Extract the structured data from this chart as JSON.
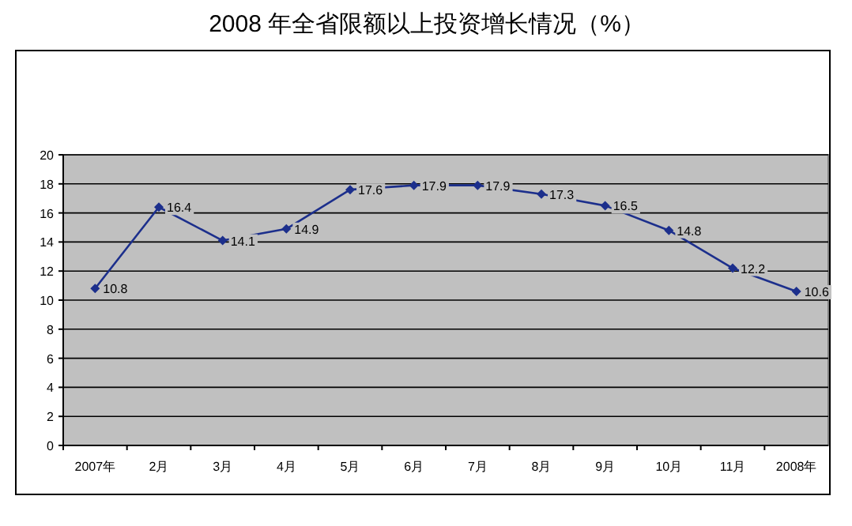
{
  "chart_data": {
    "type": "line",
    "title": "2008 年全省限额以上投资增长情况（%）",
    "categories": [
      "2007年",
      "2月",
      "3月",
      "4月",
      "5月",
      "6月",
      "7月",
      "8月",
      "9月",
      "10月",
      "11月",
      "2008年"
    ],
    "series": [
      {
        "color": "#1c2f8c",
        "values": [
          10.8,
          16.4,
          14.1,
          14.9,
          17.6,
          17.9,
          17.9,
          17.3,
          16.5,
          14.8,
          12.2,
          10.6
        ]
      }
    ],
    "ylim": [
      0,
      20
    ],
    "yticks": [
      0,
      2,
      4,
      6,
      8,
      10,
      12,
      14,
      16,
      18,
      20
    ],
    "grid": "y",
    "marker": "diamond",
    "line_style": "solid",
    "data_labels": true
  }
}
